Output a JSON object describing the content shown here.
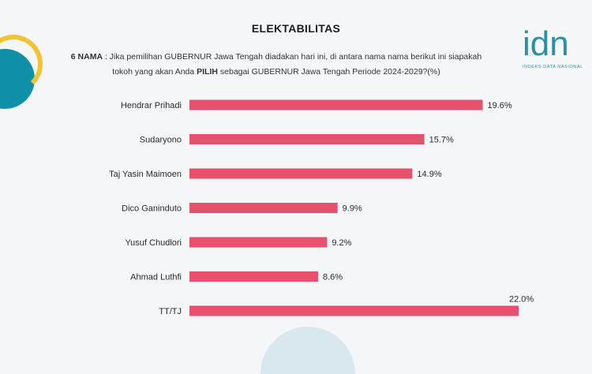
{
  "title": "ELEKTABILITAS",
  "question": {
    "prefix": "6 NAMA",
    "line1": " : Jika pemilihan GUBERNUR Jawa Tengah diadakan hari ini, di antara nama nama berikut ini siapakah",
    "line2_a": "tokoh yang akan Anda ",
    "line2_bold": "PILIH",
    "line2_b": " sebagai GUBERNUR Jawa Tengah Periode 2024-2029?(%)"
  },
  "logo": {
    "text": "idn",
    "subtitle": "INDEKS DATA NASIONAL",
    "color": "#2e8fa5"
  },
  "chart_data": {
    "type": "bar",
    "orientation": "horizontal",
    "categories": [
      "Hendrar Prihadi",
      "Sudaryono",
      "Taj Yasin Maimoen",
      "Dico Ganinduto",
      "Yusuf Chudlori",
      "Ahmad Luthfi",
      "TT/TJ"
    ],
    "values": [
      19.6,
      15.7,
      14.9,
      9.9,
      9.2,
      8.6,
      22.0
    ],
    "value_labels": [
      "19.6%",
      "15.7%",
      "14.9%",
      "9.9%",
      "9.2%",
      "8.6%",
      "22.0%"
    ],
    "xlim": [
      0,
      22.0
    ],
    "bar_color": "#e8506d",
    "grid": false,
    "legend": "none"
  }
}
